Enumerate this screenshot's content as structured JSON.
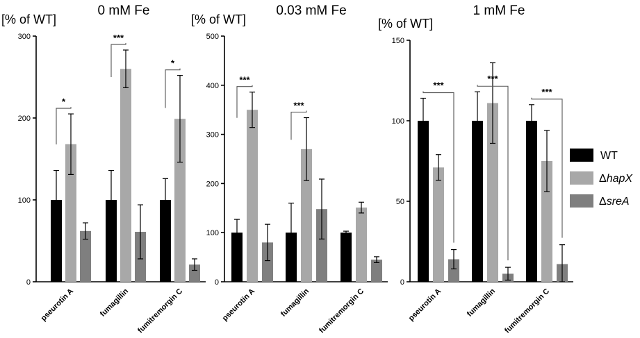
{
  "unit_label": "[% of WT]",
  "legend": [
    {
      "key": "WT",
      "prefix": "",
      "name": "WT",
      "color": "#000000"
    },
    {
      "key": "hapX",
      "prefix": "Δ",
      "name": "hapX",
      "color": "#a8a8a8"
    },
    {
      "key": "sreA",
      "prefix": "Δ",
      "name": "sreA",
      "color": "#7f7f7f"
    }
  ],
  "chart_data": [
    {
      "type": "bar",
      "title": "0 mM Fe",
      "ylabel": "[% of WT]",
      "ylim": [
        0,
        300
      ],
      "yticks": [
        0,
        100,
        200,
        300
      ],
      "categories": [
        "pseurotin A",
        "fumagillin",
        "fumitremorgin C"
      ],
      "series": [
        {
          "name": "WT",
          "values": [
            100,
            100,
            100
          ],
          "errors": [
            36,
            36,
            26
          ]
        },
        {
          "name": "ΔhapX",
          "values": [
            168,
            260,
            199
          ],
          "errors": [
            37,
            23,
            53
          ]
        },
        {
          "name": "ΔsreA",
          "values": [
            62,
            61,
            21
          ],
          "errors": [
            10,
            33,
            7
          ]
        }
      ],
      "significance": [
        {
          "category": 0,
          "from": "WT",
          "to": "ΔhapX",
          "label": "*"
        },
        {
          "category": 1,
          "from": "WT",
          "to": "ΔhapX",
          "label": "***"
        },
        {
          "category": 2,
          "from": "WT",
          "to": "ΔhapX",
          "label": "*"
        }
      ]
    },
    {
      "type": "bar",
      "title": "0.03 mM Fe",
      "ylabel": "[% of WT]",
      "ylim": [
        0,
        500
      ],
      "yticks": [
        0,
        100,
        200,
        300,
        400,
        500
      ],
      "categories": [
        "pseurotin A",
        "fumagillin",
        "fumitremorgin C"
      ],
      "series": [
        {
          "name": "WT",
          "values": [
            100,
            100,
            100
          ],
          "errors": [
            27,
            60,
            3
          ]
        },
        {
          "name": "ΔhapX",
          "values": [
            350,
            270,
            151
          ],
          "errors": [
            36,
            64,
            11
          ]
        },
        {
          "name": "ΔsreA",
          "values": [
            80,
            148,
            45
          ],
          "errors": [
            37,
            61,
            6
          ]
        }
      ],
      "significance": [
        {
          "category": 0,
          "from": "WT",
          "to": "ΔhapX",
          "label": "***"
        },
        {
          "category": 1,
          "from": "WT",
          "to": "ΔhapX",
          "label": "***"
        }
      ]
    },
    {
      "type": "bar",
      "title": "1 mM Fe",
      "ylabel": "[% of WT]",
      "ylim": [
        0,
        150
      ],
      "yticks": [
        0,
        50,
        100,
        150
      ],
      "categories": [
        "pseurotin A",
        "fumagillin",
        "fumitremorgin C"
      ],
      "series": [
        {
          "name": "WT",
          "values": [
            100,
            100,
            100
          ],
          "errors": [
            14,
            18,
            10
          ]
        },
        {
          "name": "ΔhapX",
          "values": [
            71,
            111,
            75
          ],
          "errors": [
            8,
            25,
            19
          ]
        },
        {
          "name": "ΔsreA",
          "values": [
            14,
            5,
            11
          ],
          "errors": [
            6,
            4,
            12
          ]
        }
      ],
      "significance": [
        {
          "category": 0,
          "from": "WT",
          "to": "ΔsreA",
          "label": "***"
        },
        {
          "category": 1,
          "from": "WT",
          "to": "ΔsreA",
          "label": "***"
        },
        {
          "category": 2,
          "from": "WT",
          "to": "ΔsreA",
          "label": "***"
        }
      ]
    }
  ]
}
